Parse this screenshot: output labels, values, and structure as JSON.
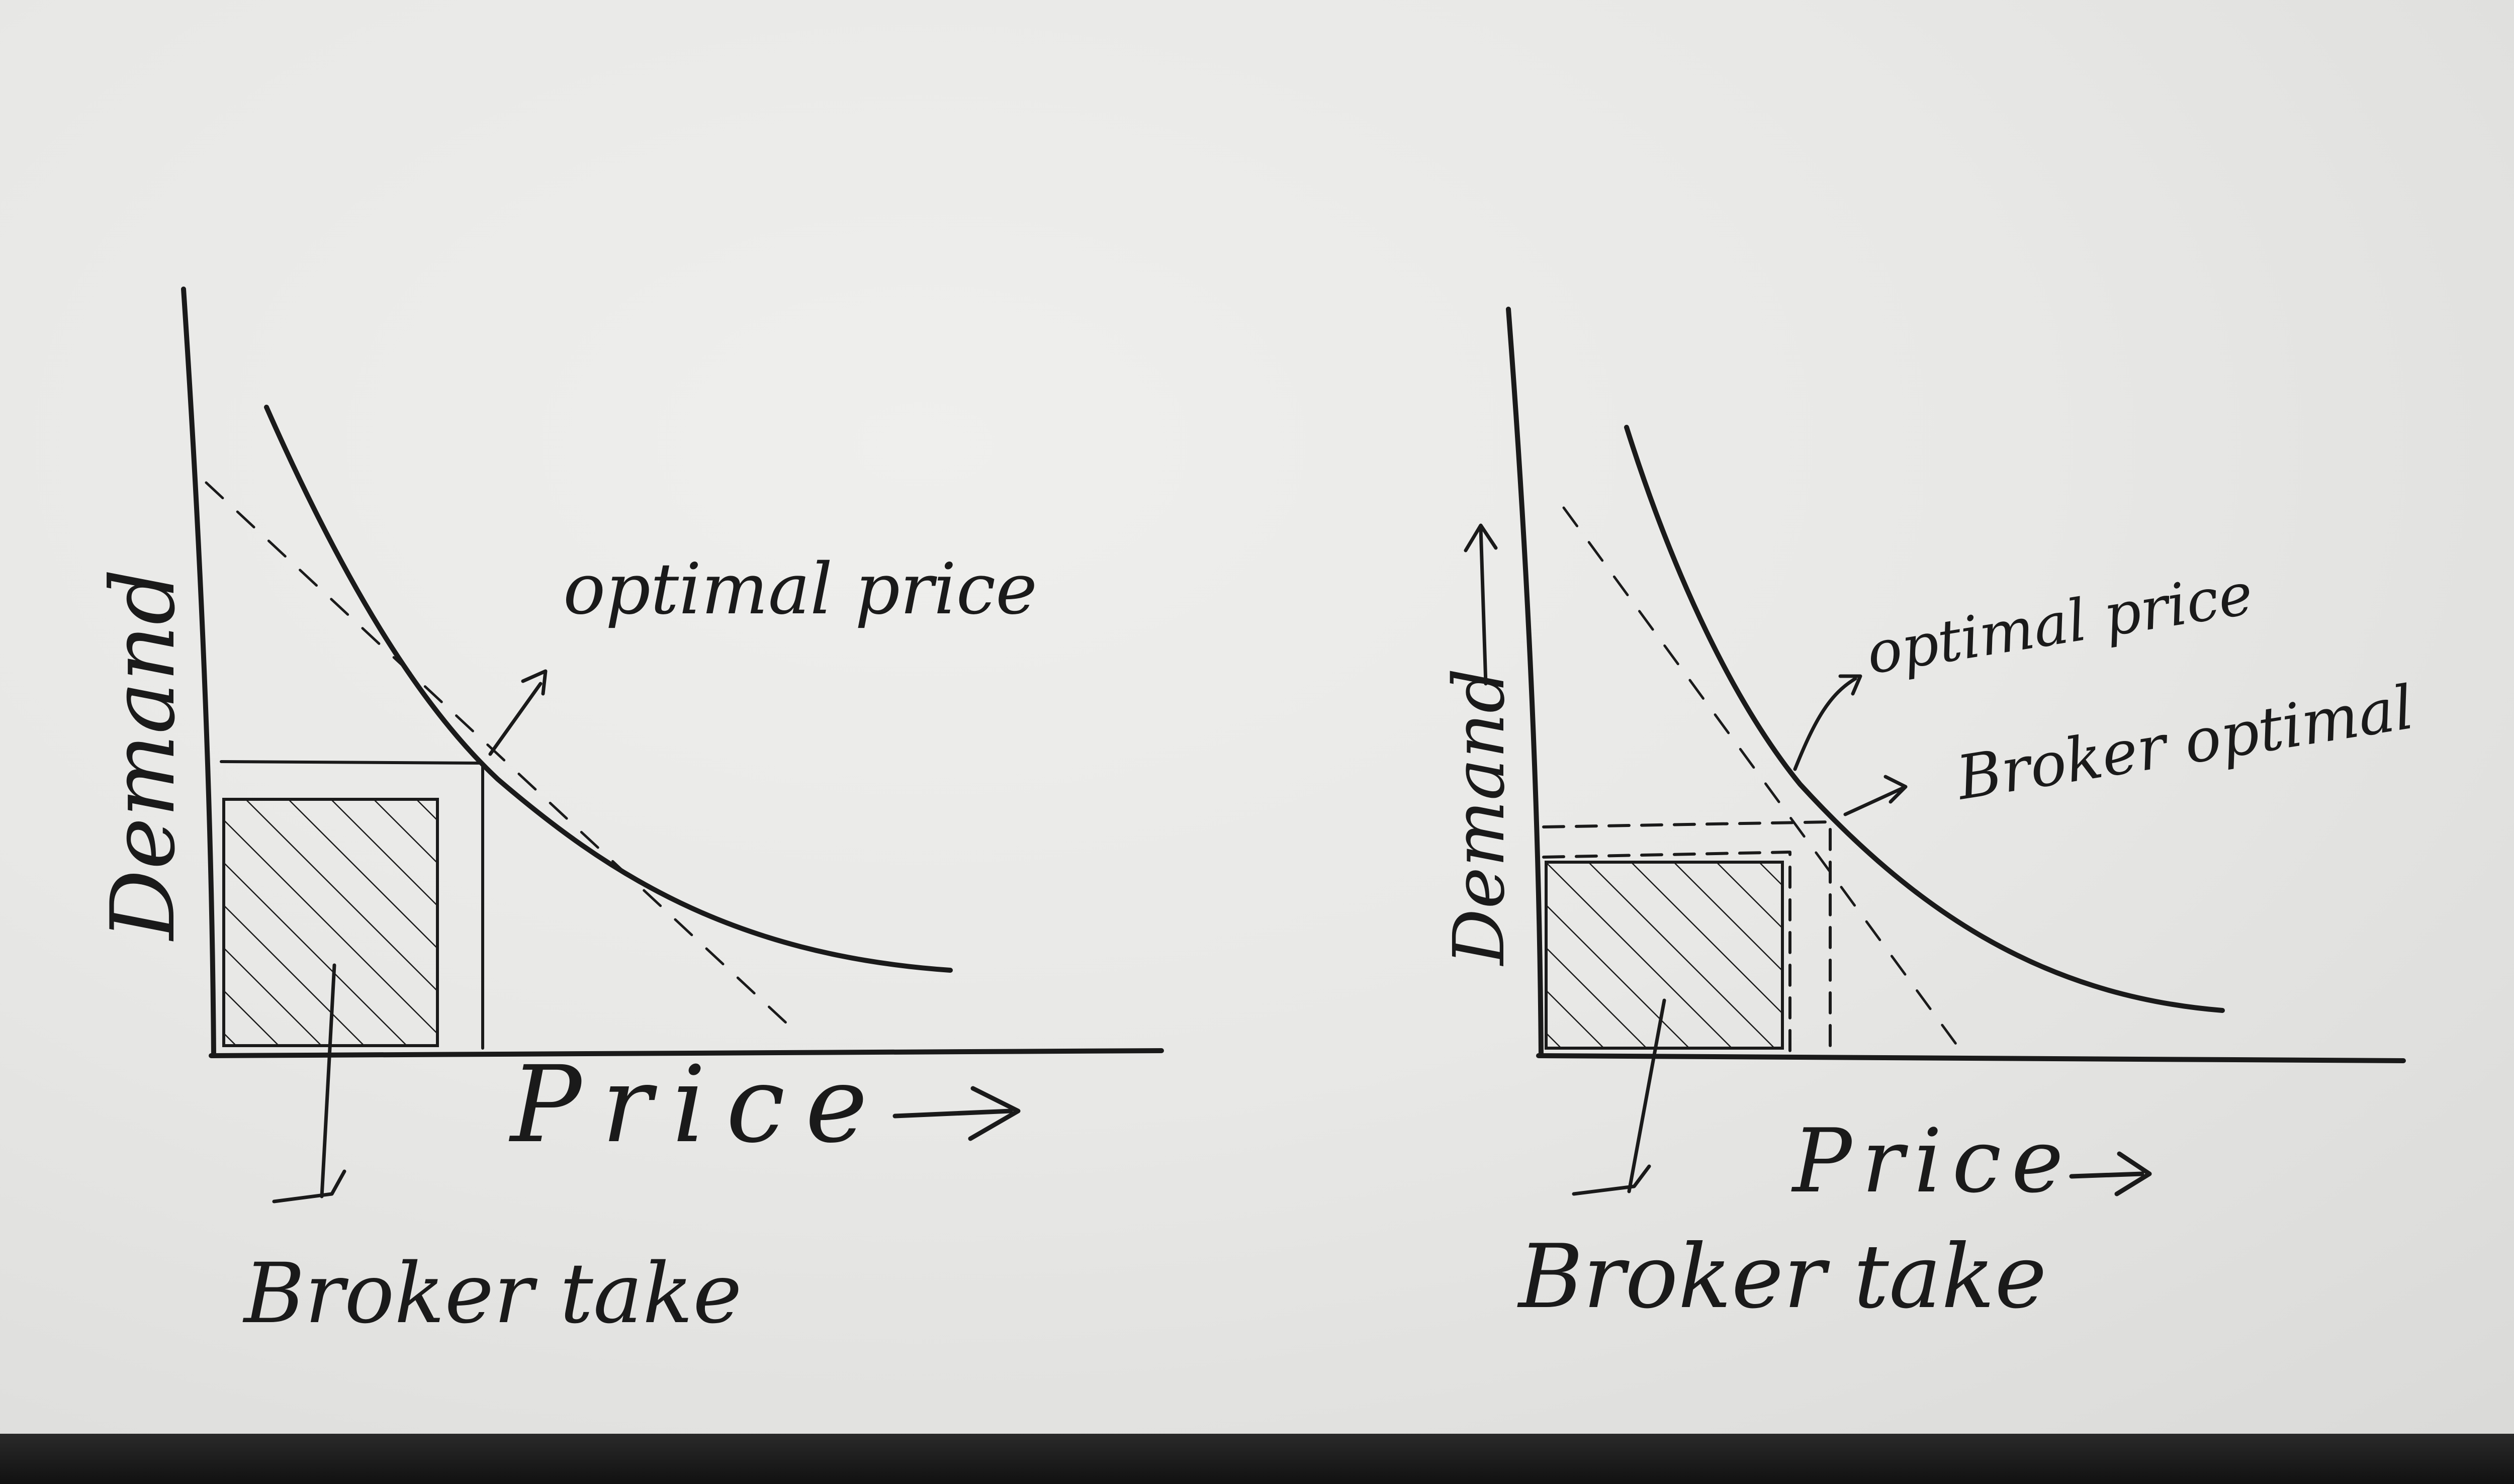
{
  "diagrams": [
    {
      "y_axis_label": "Demand",
      "x_axis_label": "Price",
      "curve_annotation": "optimal price",
      "shaded_area_label": "Broker take"
    },
    {
      "y_axis_label": "Demand",
      "x_axis_label": "Price",
      "curve_annotation_1": "optimal price",
      "curve_annotation_2": "Broker optimal",
      "shaded_area_label": "Broker take"
    }
  ],
  "colors": {
    "ink": "#1a1a1a",
    "paper": "#e8e8e6"
  }
}
